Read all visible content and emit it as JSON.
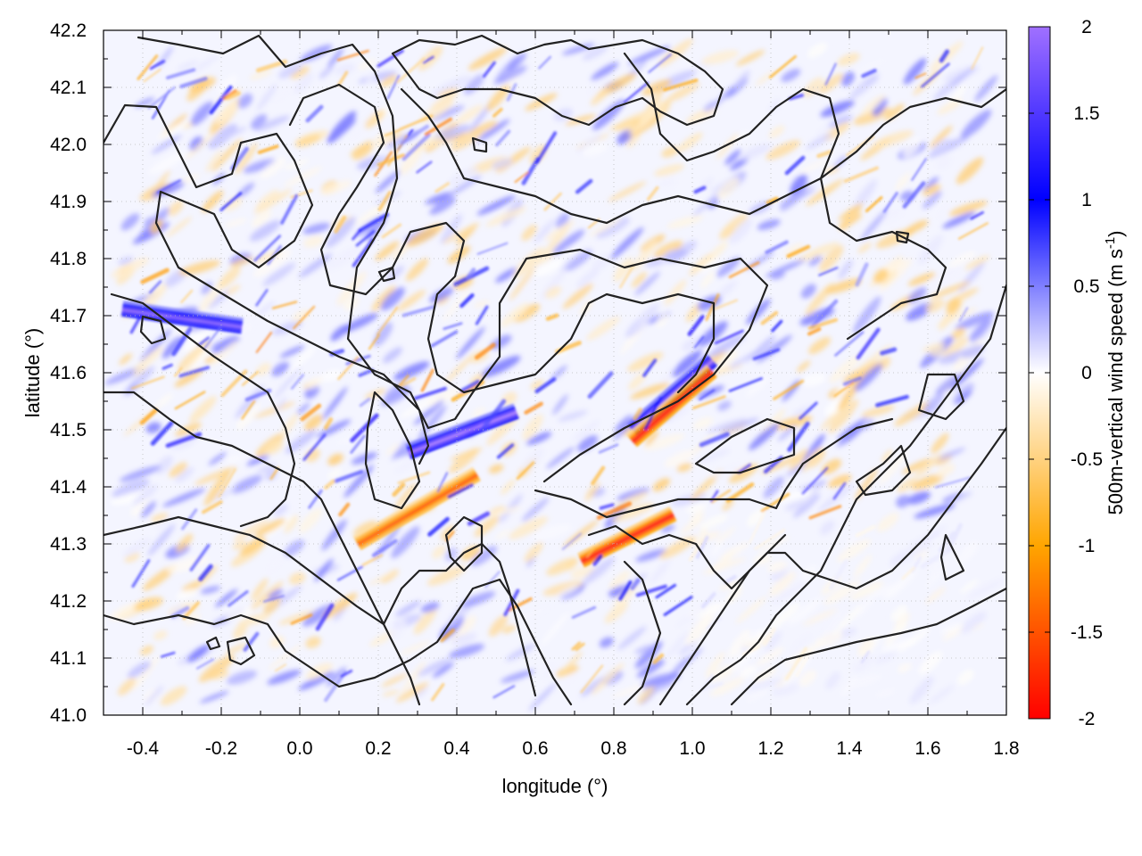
{
  "chart_data": {
    "type": "heatmap",
    "title": "",
    "xlabel": "longitude (°)",
    "ylabel": "latitude (°)",
    "colorbar_label": "500m-vertical wind speed (m s",
    "colorbar_label_sup": "-1",
    "colorbar_label_end": ")",
    "xlim": [
      -0.5,
      1.8
    ],
    "ylim": [
      41.0,
      42.2
    ],
    "x_ticks": [
      -0.4,
      -0.2,
      0.0,
      0.2,
      0.4,
      0.6,
      0.8,
      1.0,
      1.2,
      1.4,
      1.6,
      1.8
    ],
    "x_tick_labels": [
      "-0.4",
      "-0.2",
      "0.0",
      "0.2",
      "0.4",
      "0.6",
      "0.8",
      "1.0",
      "1.2",
      "1.4",
      "1.6",
      "1.8"
    ],
    "y_ticks": [
      41.0,
      41.1,
      41.2,
      41.3,
      41.4,
      41.5,
      41.6,
      41.7,
      41.8,
      41.9,
      42.0,
      42.1,
      42.2
    ],
    "y_tick_labels": [
      "41.0",
      "41.1",
      "41.2",
      "41.3",
      "41.4",
      "41.5",
      "41.6",
      "41.7",
      "41.8",
      "41.9",
      "42.0",
      "42.1",
      "42.2"
    ],
    "colorbar_range": [
      -2,
      2
    ],
    "colorbar_ticks": [
      2,
      1.5,
      1,
      0.5,
      0,
      -0.5,
      -1,
      -1.5,
      -2
    ],
    "colorbar_tick_labels": [
      "2",
      "1.5",
      "1",
      "0.5",
      "0",
      "-0.5",
      "-1",
      "-1.5",
      "-2"
    ],
    "colormap_stops": [
      {
        "value": -2.0,
        "color": "#ff0000"
      },
      {
        "value": -1.0,
        "color": "#ffa500"
      },
      {
        "value": 0.0,
        "color": "#ffffff"
      },
      {
        "value": 1.0,
        "color": "#0000ff"
      },
      {
        "value": 2.0,
        "color": "#a070ff"
      }
    ],
    "grid": true,
    "overlay": "terrain elevation contours (black lines)",
    "strong_features": [
      {
        "name": "updraft ridge",
        "sign": "positive",
        "from": [
          0.28,
          41.46
        ],
        "to": [
          0.55,
          41.53
        ],
        "peak": 2.0
      },
      {
        "name": "updraft ridge",
        "sign": "positive",
        "from": [
          0.85,
          41.5
        ],
        "to": [
          1.05,
          41.62
        ],
        "peak": 2.0
      },
      {
        "name": "downdraft band",
        "sign": "negative",
        "from": [
          0.85,
          41.48
        ],
        "to": [
          1.05,
          41.6
        ],
        "peak": -2.0
      },
      {
        "name": "northwest updraft band",
        "sign": "positive",
        "from": [
          -0.45,
          41.71
        ],
        "to": [
          -0.15,
          41.68
        ],
        "peak": 1.8
      },
      {
        "name": "downdraft cluster",
        "sign": "negative",
        "from": [
          0.72,
          41.27
        ],
        "to": [
          0.95,
          41.35
        ],
        "peak": -2.0
      },
      {
        "name": "downdraft cluster",
        "sign": "negative",
        "from": [
          0.15,
          41.3
        ],
        "to": [
          0.45,
          41.42
        ],
        "peak": -1.5
      }
    ]
  }
}
